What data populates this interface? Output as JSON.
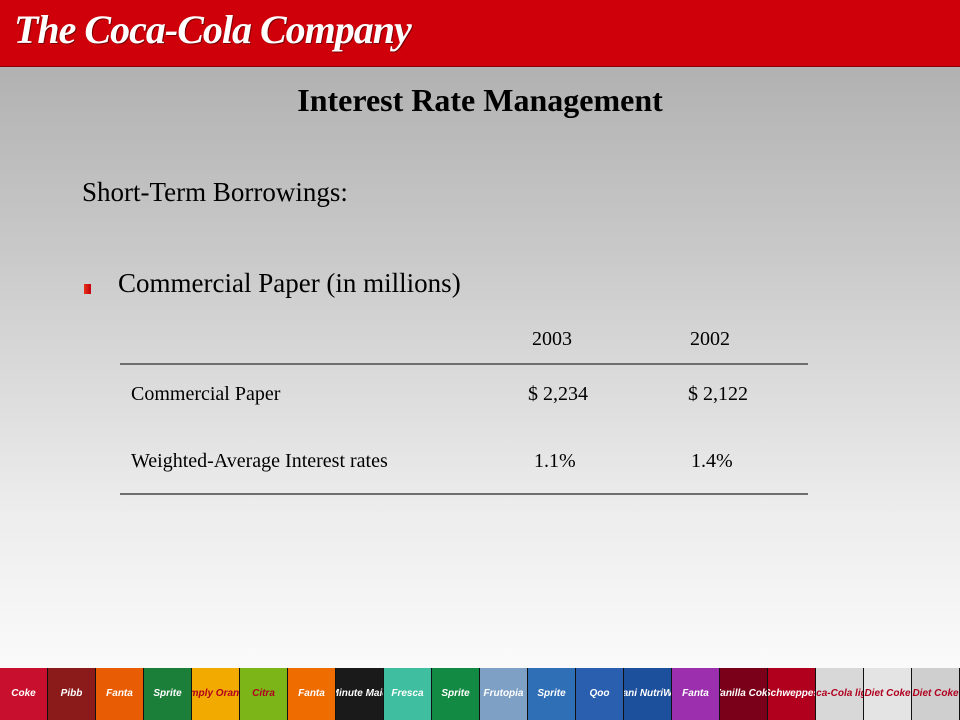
{
  "header": {
    "logo_text": "The Coca-Cola Company",
    "color": "#d0000a"
  },
  "slide": {
    "title": "Interest Rate Management",
    "subtitle": "Short-Term Borrowings:",
    "bullet": "Commercial Paper (in millions)"
  },
  "table": {
    "columns": [
      "2003",
      "2002"
    ],
    "rows": [
      {
        "label": "Commercial Paper",
        "values": [
          "$ 2,234",
          "$ 2,122"
        ]
      },
      {
        "label": "Weighted-Average Interest rates",
        "values": [
          "1.1%",
          "1.4%"
        ]
      }
    ]
  },
  "footer_cans": [
    {
      "label": "Coke",
      "color": "#c8102e"
    },
    {
      "label": "Pibb",
      "color": "#8b1a1a"
    },
    {
      "label": "Fanta",
      "color": "#e85d04"
    },
    {
      "label": "Sprite",
      "color": "#1b7f3a"
    },
    {
      "label": "Simply Orange",
      "color": "#f2a900"
    },
    {
      "label": "Citra",
      "color": "#7cb518"
    },
    {
      "label": "Fanta",
      "color": "#ee6c00"
    },
    {
      "label": "Minute Maid",
      "color": "#1a1a1a"
    },
    {
      "label": "Fresca",
      "color": "#3fbf9f"
    },
    {
      "label": "Sprite",
      "color": "#138a43"
    },
    {
      "label": "Frutopia",
      "color": "#7da0c4"
    },
    {
      "label": "Sprite",
      "color": "#2e6fb5"
    },
    {
      "label": "Qoo",
      "color": "#2a5fb0"
    },
    {
      "label": "Dasani NutriWater",
      "color": "#1c4f9c"
    },
    {
      "label": "Fanta",
      "color": "#9b2fae"
    },
    {
      "label": "Vanilla Coke",
      "color": "#7a0019"
    },
    {
      "label": "Schweppes",
      "color": "#b0001e"
    },
    {
      "label": "Coca-Cola light",
      "color": "#d8d8d8"
    },
    {
      "label": "Diet Coke",
      "color": "#e4e4e4"
    },
    {
      "label": "Diet Coke",
      "color": "#cfcfcf"
    }
  ]
}
